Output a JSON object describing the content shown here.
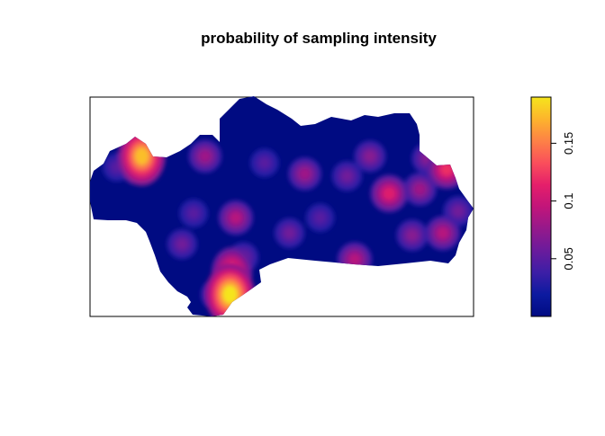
{
  "chart_data": {
    "type": "heatmap",
    "title": "probability of sampling intensity",
    "xlabel": "",
    "ylabel": "",
    "legend_placement": "right",
    "colorbar": {
      "min": 0.0,
      "max": 0.19,
      "ticks": [
        {
          "value": 0.05,
          "label": "0.05"
        },
        {
          "value": 0.1,
          "label": "0.1"
        },
        {
          "value": 0.15,
          "label": "0.15"
        }
      ],
      "colors": [
        "#000b82",
        "#0c1aa0",
        "#3c1ea6",
        "#6a1b9c",
        "#95198b",
        "#c2157a",
        "#e51f6a",
        "#fa4f5b",
        "#fd8146",
        "#fdb42c",
        "#f5e51c"
      ]
    },
    "hotspots": [
      {
        "x": 0.135,
        "y": 0.27,
        "value": 0.175
      },
      {
        "x": 0.12,
        "y": 0.33,
        "value": 0.06
      },
      {
        "x": 0.07,
        "y": 0.32,
        "value": 0.05
      },
      {
        "x": 0.3,
        "y": 0.27,
        "value": 0.08
      },
      {
        "x": 0.27,
        "y": 0.53,
        "value": 0.05
      },
      {
        "x": 0.38,
        "y": 0.55,
        "value": 0.09
      },
      {
        "x": 0.24,
        "y": 0.67,
        "value": 0.06
      },
      {
        "x": 0.37,
        "y": 0.8,
        "value": 0.13
      },
      {
        "x": 0.365,
        "y": 0.9,
        "value": 0.19
      },
      {
        "x": 0.33,
        "y": 0.9,
        "value": 0.07
      },
      {
        "x": 0.4,
        "y": 0.73,
        "value": 0.06
      },
      {
        "x": 0.455,
        "y": 0.3,
        "value": 0.05
      },
      {
        "x": 0.56,
        "y": 0.35,
        "value": 0.08
      },
      {
        "x": 0.52,
        "y": 0.62,
        "value": 0.06
      },
      {
        "x": 0.67,
        "y": 0.36,
        "value": 0.06
      },
      {
        "x": 0.73,
        "y": 0.27,
        "value": 0.07
      },
      {
        "x": 0.78,
        "y": 0.44,
        "value": 0.11
      },
      {
        "x": 0.86,
        "y": 0.42,
        "value": 0.08
      },
      {
        "x": 0.88,
        "y": 0.28,
        "value": 0.07
      },
      {
        "x": 0.93,
        "y": 0.33,
        "value": 0.12
      },
      {
        "x": 0.84,
        "y": 0.63,
        "value": 0.07
      },
      {
        "x": 0.92,
        "y": 0.62,
        "value": 0.09
      },
      {
        "x": 0.69,
        "y": 0.74,
        "value": 0.09
      },
      {
        "x": 0.96,
        "y": 0.52,
        "value": 0.06
      },
      {
        "x": 0.6,
        "y": 0.55,
        "value": 0.05
      }
    ]
  }
}
